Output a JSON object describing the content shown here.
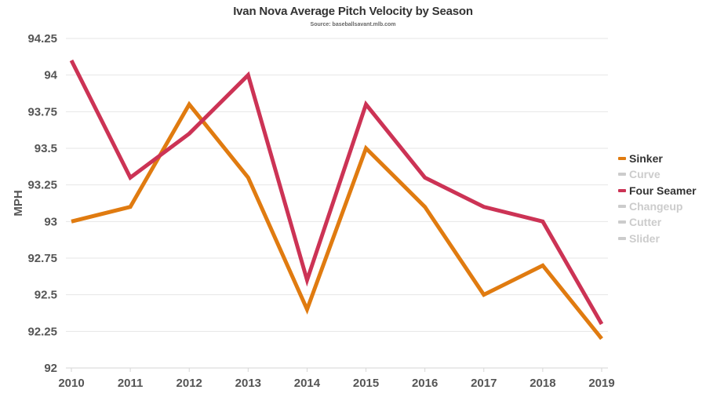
{
  "chart_data": {
    "type": "line",
    "title": "Ivan Nova Average Pitch Velocity by Season",
    "subtitle": "Source: baseballsavant.mlb.com",
    "xlabel": "",
    "ylabel": "MPH",
    "x": [
      "2010",
      "2011",
      "2012",
      "2013",
      "2014",
      "2015",
      "2016",
      "2017",
      "2018",
      "2019"
    ],
    "ylim": [
      92,
      94.25
    ],
    "yticks": [
      "92",
      "92.25",
      "92.5",
      "92.75",
      "93",
      "93.25",
      "93.5",
      "93.75",
      "94",
      "94.25"
    ],
    "grid": true,
    "legend_position": "right",
    "series": [
      {
        "name": "Sinker",
        "color": "#e07b10",
        "visible": true,
        "values": [
          93.0,
          93.1,
          93.8,
          93.3,
          92.4,
          93.5,
          93.1,
          92.5,
          92.7,
          92.2
        ]
      },
      {
        "name": "Curve",
        "color": "#cccccc",
        "visible": false,
        "values": []
      },
      {
        "name": "Four Seamer",
        "color": "#cc3355",
        "visible": true,
        "values": [
          94.1,
          93.3,
          93.6,
          94.0,
          92.6,
          93.8,
          93.3,
          93.1,
          93.0,
          92.3
        ]
      },
      {
        "name": "Changeup",
        "color": "#cccccc",
        "visible": false,
        "values": []
      },
      {
        "name": "Cutter",
        "color": "#cccccc",
        "visible": false,
        "values": []
      },
      {
        "name": "Slider",
        "color": "#cccccc",
        "visible": false,
        "values": []
      }
    ]
  },
  "colors": {
    "text": "#333333",
    "axis_text": "#555555",
    "legend_active_text": "#333333",
    "legend_hidden_text": "#cccccc",
    "grid": "#e6e6e6"
  }
}
